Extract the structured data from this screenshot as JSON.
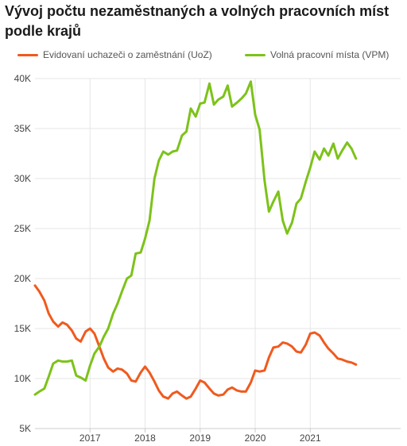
{
  "title": "Vývoj počtu nezaměstnaných a volných pracovních míst podle krajů",
  "colors": {
    "uoz": "#f05a1e",
    "vpm": "#7dc21a",
    "grid": "#e6e6e6",
    "axis": "#cccccc"
  },
  "chart_data": {
    "type": "line",
    "title": "Vývoj počtu nezaměstnaných a volných pracovních míst podle krajů",
    "xlabel": "",
    "ylabel": "",
    "x_tick_labels": [
      "2017",
      "2018",
      "2019",
      "2020",
      "2021"
    ],
    "x_tick_positions": [
      2017,
      2018,
      2019,
      2020,
      2021
    ],
    "y_ticks": [
      5000,
      10000,
      15000,
      20000,
      25000,
      30000,
      35000,
      40000
    ],
    "y_tick_labels": [
      "5K",
      "10K",
      "15K",
      "20K",
      "25K",
      "30K",
      "35K",
      "40K"
    ],
    "ylim": [
      5000,
      40000
    ],
    "xlim": [
      2016.0,
      2021.92
    ],
    "grid": true,
    "legend": "top",
    "series": [
      {
        "name": "Evidovaní uchazeči o zaměstnání (UoZ)",
        "x": [
          2016.0,
          2016.08,
          2016.17,
          2016.25,
          2016.33,
          2016.42,
          2016.5,
          2016.58,
          2016.67,
          2016.75,
          2016.83,
          2016.92,
          2017.0,
          2017.08,
          2017.17,
          2017.25,
          2017.33,
          2017.42,
          2017.5,
          2017.58,
          2017.67,
          2017.75,
          2017.83,
          2017.92,
          2018.0,
          2018.08,
          2018.17,
          2018.25,
          2018.33,
          2018.42,
          2018.5,
          2018.58,
          2018.67,
          2018.75,
          2018.83,
          2018.92,
          2019.0,
          2019.08,
          2019.17,
          2019.25,
          2019.33,
          2019.42,
          2019.5,
          2019.58,
          2019.67,
          2019.75,
          2019.83,
          2019.92,
          2020.0,
          2020.08,
          2020.17,
          2020.25,
          2020.33,
          2020.42,
          2020.5,
          2020.58,
          2020.67,
          2020.75,
          2020.83,
          2020.92,
          2021.0,
          2021.08,
          2021.17,
          2021.25,
          2021.33,
          2021.42,
          2021.5,
          2021.58,
          2021.67,
          2021.75,
          2021.83
        ],
        "values": [
          19300,
          18700,
          17800,
          16500,
          15700,
          15200,
          15600,
          15400,
          14800,
          14000,
          13700,
          14700,
          15000,
          14500,
          13200,
          12000,
          11100,
          10700,
          11000,
          10900,
          10500,
          9800,
          9700,
          10600,
          11200,
          10600,
          9700,
          8800,
          8200,
          8000,
          8500,
          8700,
          8300,
          8000,
          8200,
          9000,
          9800,
          9600,
          9000,
          8500,
          8300,
          8400,
          8900,
          9100,
          8800,
          8700,
          8700,
          9600,
          10800,
          10700,
          10800,
          12100,
          13100,
          13200,
          13600,
          13500,
          13200,
          12700,
          12600,
          13400,
          14500,
          14600,
          14300,
          13600,
          13000,
          12500,
          12000,
          11900,
          11700,
          11600,
          11400
        ]
      },
      {
        "name": "Volná pracovní místa (VPM)",
        "x": [
          2016.0,
          2016.08,
          2016.17,
          2016.25,
          2016.33,
          2016.42,
          2016.5,
          2016.58,
          2016.67,
          2016.75,
          2016.83,
          2016.92,
          2017.0,
          2017.08,
          2017.17,
          2017.25,
          2017.33,
          2017.42,
          2017.5,
          2017.58,
          2017.67,
          2017.75,
          2017.83,
          2017.92,
          2018.0,
          2018.08,
          2018.17,
          2018.25,
          2018.33,
          2018.42,
          2018.5,
          2018.58,
          2018.67,
          2018.75,
          2018.83,
          2018.92,
          2019.0,
          2019.08,
          2019.17,
          2019.25,
          2019.33,
          2019.42,
          2019.5,
          2019.58,
          2019.67,
          2019.75,
          2019.83,
          2019.92,
          2020.0,
          2020.08,
          2020.17,
          2020.25,
          2020.33,
          2020.42,
          2020.5,
          2020.58,
          2020.67,
          2020.75,
          2020.83,
          2020.92,
          2021.0,
          2021.08,
          2021.17,
          2021.25,
          2021.33,
          2021.42,
          2021.5,
          2021.58,
          2021.67,
          2021.75,
          2021.83
        ],
        "values": [
          8400,
          8700,
          9000,
          10200,
          11500,
          11800,
          11700,
          11700,
          11800,
          10300,
          10100,
          9800,
          11300,
          12500,
          13200,
          14200,
          15000,
          16500,
          17500,
          18700,
          20000,
          20300,
          22500,
          22600,
          24000,
          25800,
          30000,
          31800,
          32700,
          32400,
          32700,
          32800,
          34300,
          34700,
          37000,
          36200,
          37500,
          37600,
          39500,
          37400,
          37900,
          38200,
          39300,
          37200,
          37600,
          38000,
          38500,
          39700,
          36400,
          34900,
          29800,
          26700,
          27700,
          28700,
          25800,
          24500,
          25600,
          27500,
          28000,
          29700,
          31100,
          32700,
          31900,
          33000,
          32300,
          33500,
          32000,
          32800,
          33600,
          33000,
          32000
        ]
      }
    ]
  }
}
